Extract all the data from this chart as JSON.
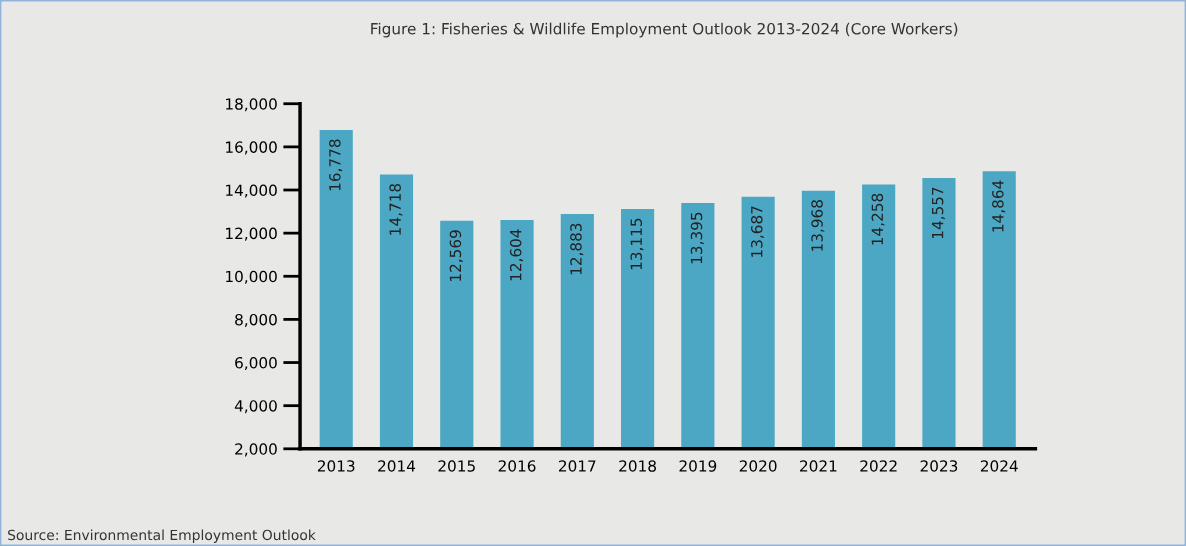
{
  "chart_data": {
    "type": "bar",
    "title": "Figure 1: Fisheries & Wildlife Employment Outlook 2013-2024 (Core Workers)",
    "categories": [
      "2013",
      "2014",
      "2015",
      "2016",
      "2017",
      "2018",
      "2019",
      "2020",
      "2021",
      "2022",
      "2023",
      "2024"
    ],
    "values": [
      16778,
      14718,
      12569,
      12604,
      12883,
      13115,
      13395,
      13687,
      13968,
      14258,
      14557,
      14864
    ],
    "value_labels": [
      "16,778",
      "14,718",
      "12,569",
      "12,604",
      "12,883",
      "13,115",
      "13,395",
      "13,687",
      "13,968",
      "14,258",
      "14,557",
      "14,864"
    ],
    "color": "#4ba7c3",
    "ylim": [
      2000,
      18000
    ],
    "yticks": [
      {
        "value": 2000,
        "label": "2,000"
      },
      {
        "value": 4000,
        "label": "4,000"
      },
      {
        "value": 6000,
        "label": "6,000"
      },
      {
        "value": 8000,
        "label": "8,000"
      },
      {
        "value": 10000,
        "label": "10,000"
      },
      {
        "value": 12000,
        "label": "12,000"
      },
      {
        "value": 14000,
        "label": "14,000"
      },
      {
        "value": 16000,
        "label": "16,000"
      },
      {
        "value": 18000,
        "label": "18,000"
      }
    ],
    "grid": false,
    "legend": false,
    "annotations": [
      "Source: Environmental Employment Outlook"
    ]
  }
}
